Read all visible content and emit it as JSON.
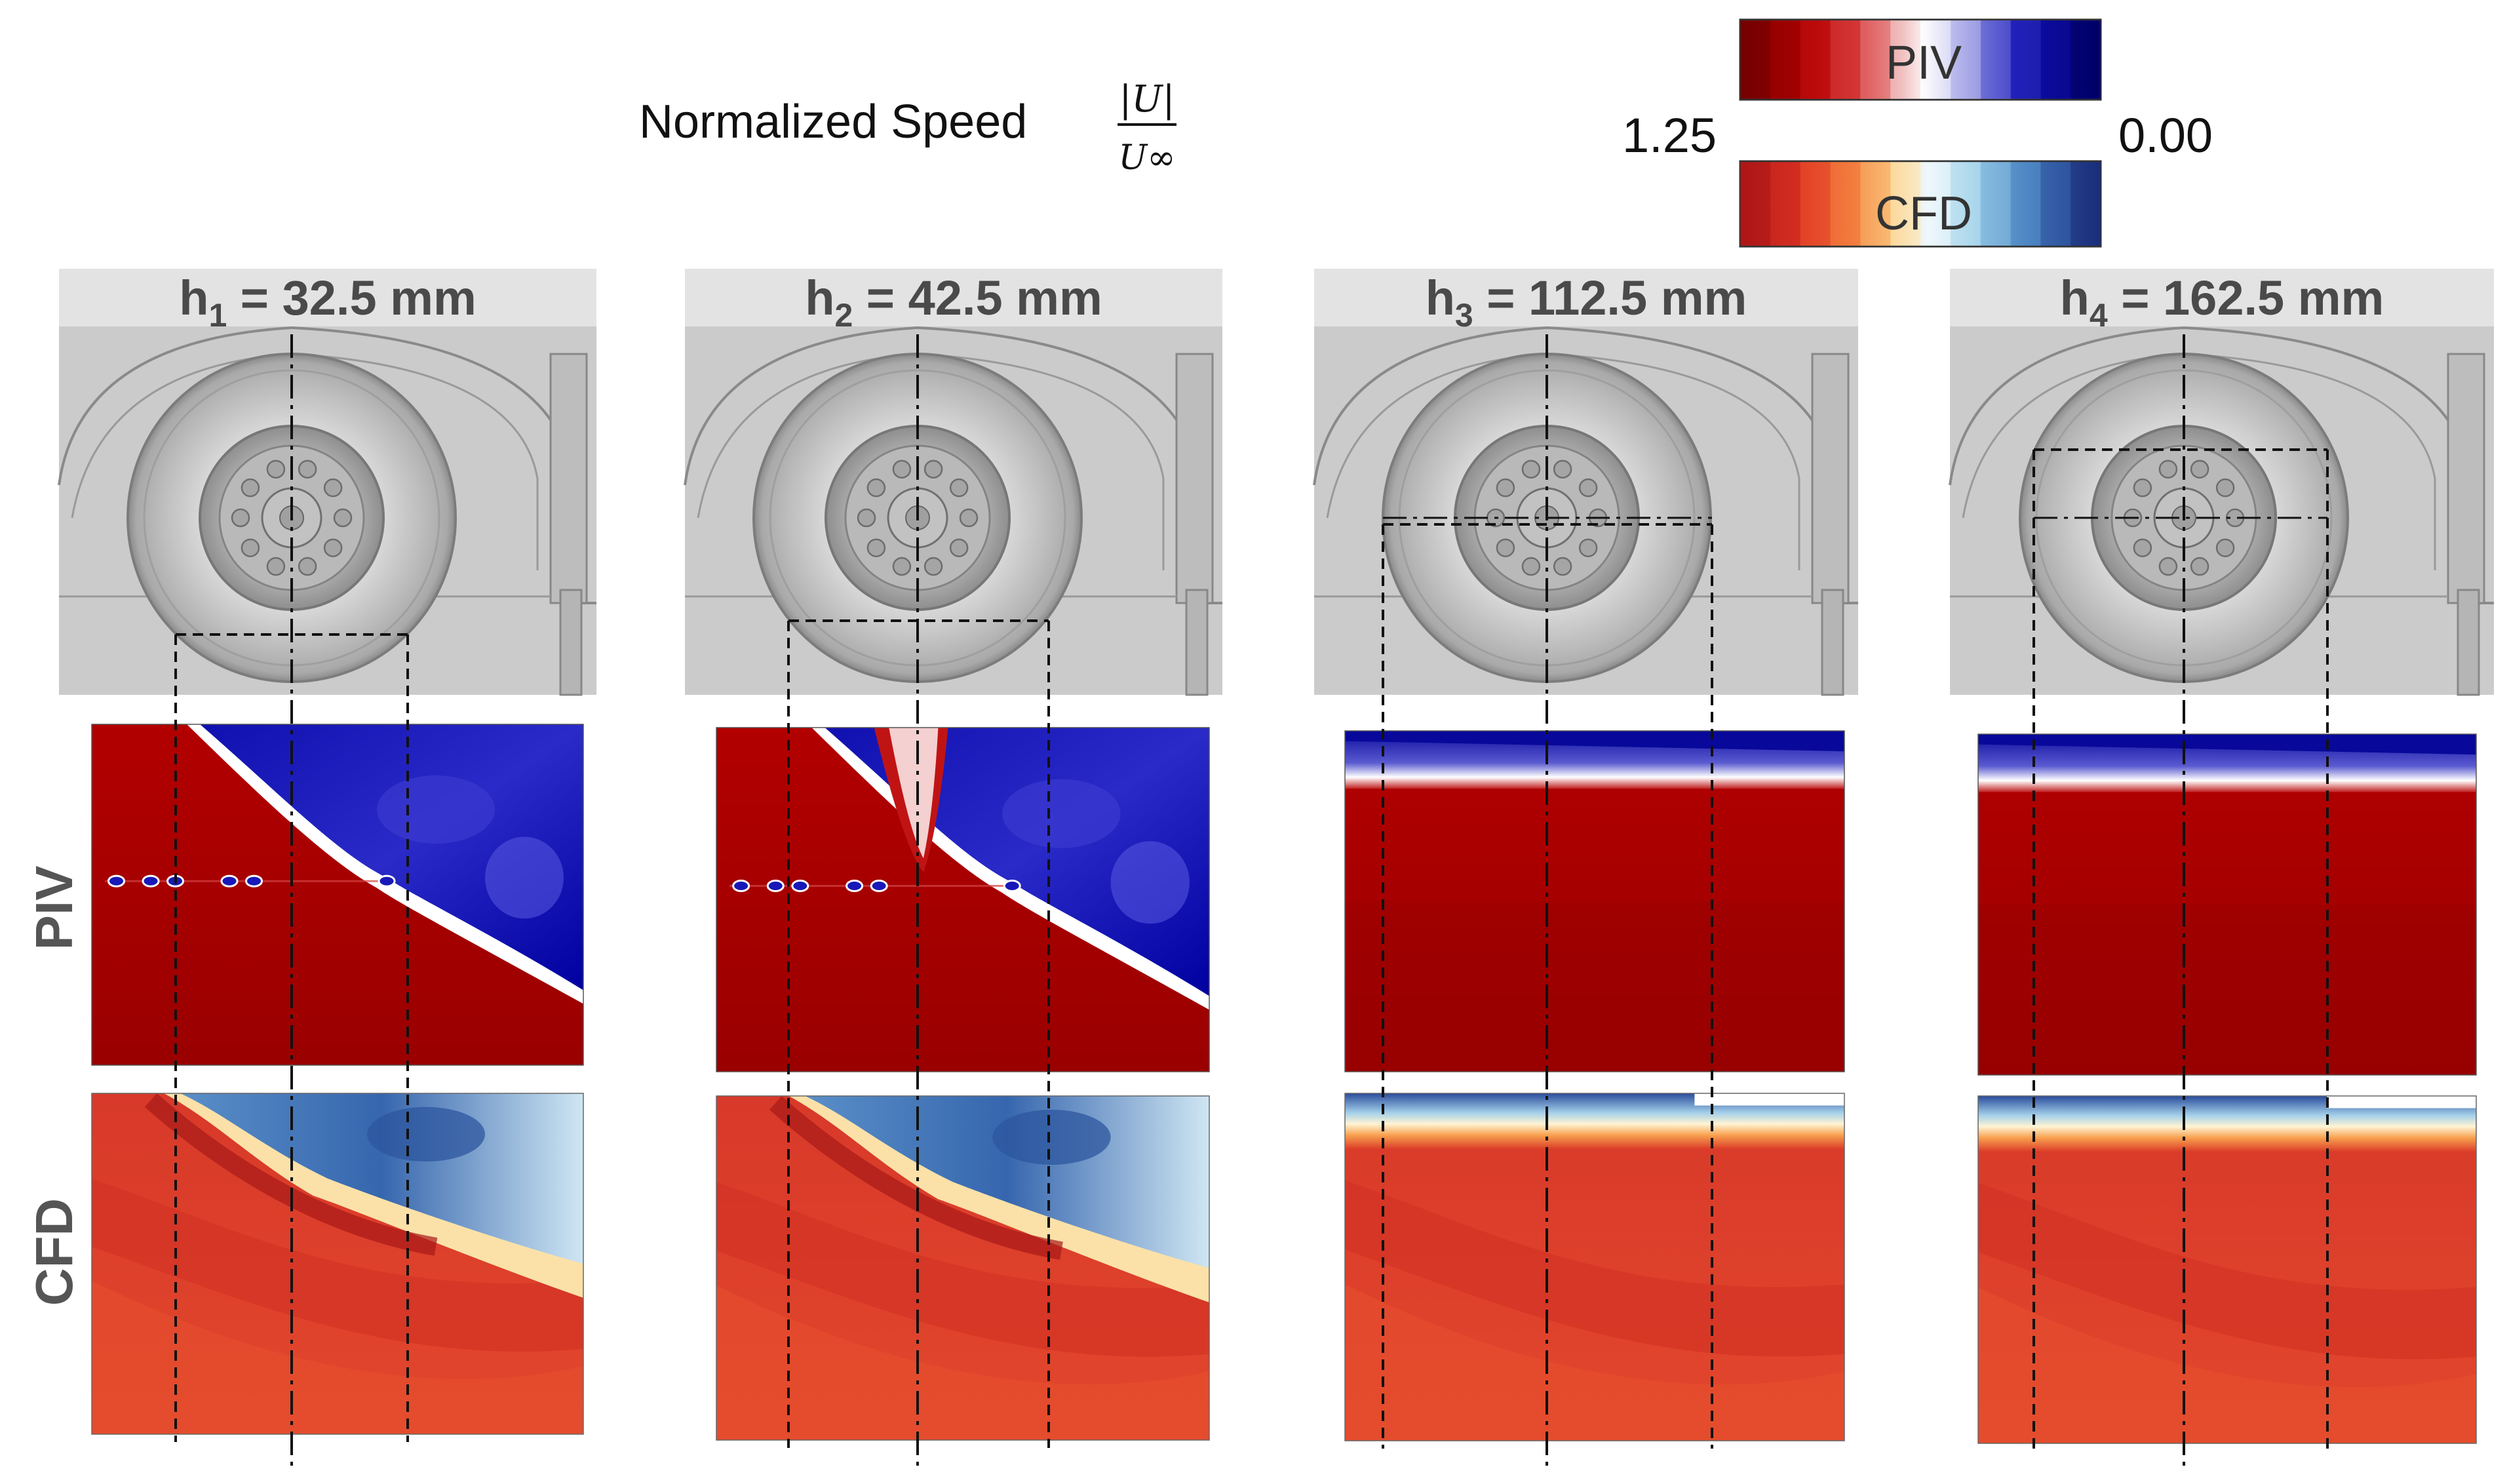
{
  "legend": {
    "title": "Normalized Speed",
    "formula_numerator": "|U|",
    "formula_denominator": "U∞",
    "max_label": "1.25",
    "min_label": "0.00",
    "piv_label": "PIV",
    "cfd_label": "CFD",
    "piv_colors": [
      "#7a0000",
      "#a00000",
      "#c41010",
      "#d84040",
      "#e88888",
      "#f6dada",
      "#ffffff",
      "#c8c8f0",
      "#7878dc",
      "#2a2ac0",
      "#0a0aa0",
      "#000070"
    ],
    "cfd_colors": [
      "#b01818",
      "#d02a20",
      "#e8502c",
      "#f48040",
      "#f8b068",
      "#fde6b0",
      "#eaf6fb",
      "#b4dcef",
      "#7ab4dc",
      "#4a86c4",
      "#2c56a4",
      "#1a2e7c"
    ]
  },
  "row_labels": {
    "piv": "PIV",
    "cfd": "CFD"
  },
  "panels": [
    {
      "prefix": "h",
      "sub": "1",
      "value": "= 32.5 mm"
    },
    {
      "prefix": "h",
      "sub": "2",
      "value": "= 42.5 mm"
    },
    {
      "prefix": "h",
      "sub": "3",
      "value": "= 112.5 mm"
    },
    {
      "prefix": "h",
      "sub": "4",
      "value": "= 162.5 mm"
    }
  ],
  "colors": {
    "piv_high": "#a50000",
    "piv_low": "#0000a8",
    "cfd_high": "#e0412a",
    "cfd_low": "#2f5fae",
    "wheel_bg": "#cfcfcf",
    "header_band": "#e3e3e3"
  }
}
